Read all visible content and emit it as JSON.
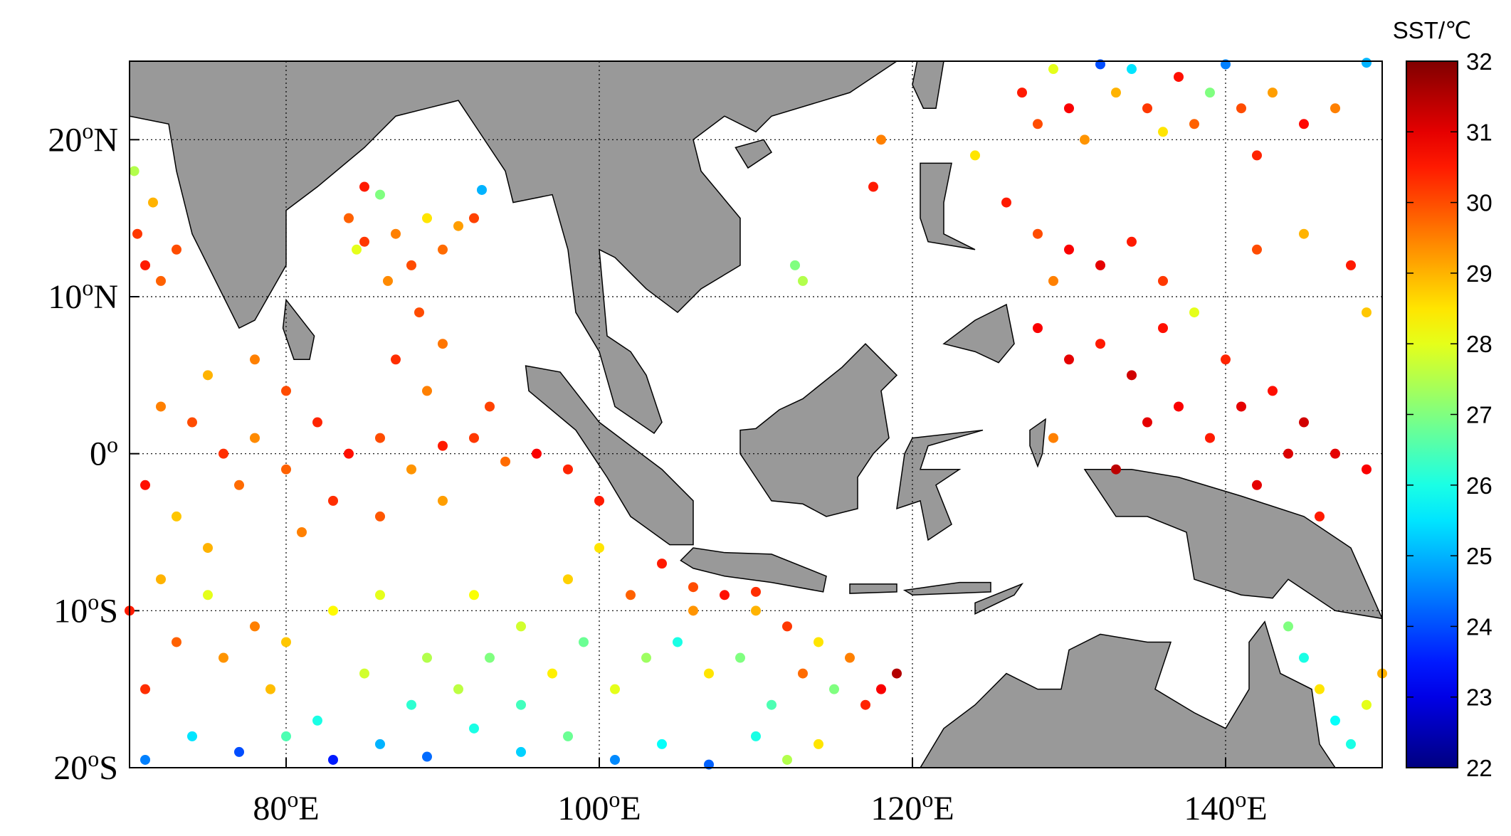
{
  "chart_data": {
    "type": "scatter",
    "xlim": [
      70,
      150
    ],
    "ylim": [
      -20,
      25
    ],
    "xticks": [
      {
        "value": 80,
        "label": "80oE"
      },
      {
        "value": 100,
        "label": "100oE"
      },
      {
        "value": 120,
        "label": "120oE"
      },
      {
        "value": 140,
        "label": "140oE"
      }
    ],
    "yticks": [
      {
        "value": -20,
        "label": "20oS"
      },
      {
        "value": -10,
        "label": "10oS"
      },
      {
        "value": 0,
        "label": "0o"
      },
      {
        "value": 10,
        "label": "10oN"
      },
      {
        "value": 20,
        "label": "20oN"
      }
    ],
    "grid": true,
    "colorbar": {
      "title": "SST/℃",
      "lim": [
        22,
        32
      ],
      "ticks": [
        22,
        23,
        24,
        25,
        26,
        27,
        28,
        29,
        30,
        31,
        32
      ],
      "colormap": "jet"
    },
    "x": [
      84,
      85,
      86,
      87,
      88,
      89,
      90,
      91,
      92,
      92.5,
      86.5,
      88.5,
      90,
      87,
      89,
      85,
      84.5,
      70.5,
      71,
      72,
      73,
      71.5,
      70.3,
      72,
      74,
      76,
      78,
      80,
      82,
      84,
      86,
      88,
      90,
      92,
      94,
      96,
      75,
      78,
      80,
      83,
      77,
      73,
      86,
      90,
      93,
      98,
      100,
      71,
      75,
      81,
      70,
      72,
      75,
      78,
      80,
      83,
      86,
      89,
      92,
      95,
      98,
      100,
      102,
      104,
      106,
      108,
      110,
      112,
      114,
      116,
      118,
      119,
      117,
      115,
      113,
      111,
      109,
      107,
      105,
      103,
      101,
      99,
      97,
      95,
      93,
      91,
      88,
      85,
      82,
      79,
      76,
      73,
      71,
      71,
      74,
      77,
      80,
      83,
      86,
      89,
      92,
      95,
      98,
      101,
      104,
      107,
      110,
      112,
      114,
      127,
      128,
      129,
      130,
      131,
      132,
      133,
      134,
      135,
      136,
      137,
      138,
      139,
      140,
      141,
      142,
      143,
      145,
      147,
      149,
      124,
      126,
      128,
      130,
      132,
      134,
      129,
      136,
      142,
      145,
      148,
      149,
      113,
      112.5,
      118,
      117.5,
      128,
      130,
      132,
      134,
      136,
      138,
      140,
      135,
      137,
      139,
      141,
      143,
      145,
      147,
      149,
      133,
      129,
      142,
      146,
      144,
      144,
      145,
      146,
      147,
      148,
      149,
      150,
      106,
      110
    ],
    "y": [
      15,
      13.5,
      16.5,
      14,
      12,
      15,
      13,
      14.5,
      15,
      16.8,
      11,
      9,
      7,
      6,
      4,
      17,
      13,
      14,
      12,
      11,
      13,
      16,
      18,
      3,
      2,
      0,
      1,
      -1,
      2,
      0,
      1,
      -1,
      0.5,
      1,
      -0.5,
      0,
      5,
      6,
      4,
      -3,
      -2,
      -4,
      -4,
      -3,
      3,
      -1,
      -3,
      -2,
      -6,
      -5,
      -10,
      -8,
      -9,
      -11,
      -12,
      -10,
      -9,
      -13,
      -9,
      -11,
      -8,
      -6,
      -9,
      -7,
      -10,
      -9,
      -10,
      -11,
      -12,
      -13,
      -15,
      -14,
      -16,
      -15,
      -14,
      -16,
      -13,
      -14,
      -12,
      -13,
      -15,
      -12,
      -14,
      -16,
      -13,
      -15,
      -16,
      -14,
      -17,
      -15,
      -13,
      -12,
      -15,
      -19.5,
      -18,
      -19,
      -18,
      -19.5,
      -18.5,
      -19.3,
      -17.5,
      -19,
      -18,
      -19.5,
      -18.5,
      -19.8,
      -18,
      -19.5,
      -18.5,
      23,
      21,
      24.5,
      22,
      20,
      24.8,
      23,
      24.5,
      22,
      20.5,
      24,
      21,
      23,
      24.8,
      22,
      19,
      23,
      21,
      22,
      24.9,
      19,
      16,
      14,
      13,
      12,
      13.5,
      11,
      11,
      13,
      14,
      12,
      9,
      11,
      12,
      20,
      17,
      8,
      6,
      7,
      5,
      8,
      9,
      6,
      2,
      3,
      1,
      3,
      4,
      2,
      0,
      -1,
      -1,
      1,
      -2,
      -4,
      0,
      -11,
      -13,
      -15,
      -17,
      -18.5,
      -16,
      -14,
      -8.5,
      -8.8
    ],
    "c": [
      29.8,
      30.2,
      27,
      29.5,
      30,
      28.5,
      29.7,
      29.2,
      30.1,
      25,
      29.4,
      30,
      29.6,
      30.3,
      29.5,
      30.5,
      28,
      30.2,
      30.5,
      29.8,
      30,
      29,
      27.5,
      29.5,
      30,
      30.3,
      29.4,
      29.8,
      30.4,
      30.6,
      30,
      29.3,
      30.5,
      30.2,
      29.7,
      30.8,
      29,
      29.5,
      30,
      30.3,
      29.7,
      28.8,
      29.9,
      29.2,
      30.1,
      30.4,
      30.5,
      30.6,
      29,
      29.5,
      30.5,
      29,
      28,
      29.5,
      28.8,
      28.3,
      28,
      27.5,
      28.2,
      27.8,
      28.7,
      28.5,
      29.8,
      30.5,
      29.3,
      30.6,
      29,
      30.2,
      28.5,
      29.5,
      30.8,
      31.5,
      30.4,
      27,
      29.7,
      26.5,
      27,
      28.5,
      26,
      27.3,
      28,
      26.8,
      28.4,
      26.4,
      27,
      27.6,
      26.2,
      27.8,
      26,
      28.9,
      29.3,
      29.8,
      30.3,
      24.5,
      25.5,
      24,
      26.5,
      23.5,
      25,
      24.3,
      26,
      25.3,
      26.8,
      24.6,
      25.8,
      24.2,
      26,
      27.5,
      28.5,
      30.5,
      30,
      28,
      30.8,
      29.3,
      24,
      29,
      25.5,
      30.2,
      28.5,
      30.6,
      29.8,
      27,
      24.5,
      30,
      30.4,
      29.2,
      30.7,
      29.5,
      25,
      28.5,
      30.5,
      30,
      30.8,
      31,
      30.5,
      29.5,
      30.2,
      30,
      29,
      30.5,
      28.8,
      27.5,
      27,
      29.5,
      30.5,
      30.8,
      31,
      30.5,
      31.2,
      30.6,
      28,
      30.4,
      31,
      30.8,
      30.5,
      31,
      30.6,
      31.2,
      31,
      30.8,
      31.4,
      29.5,
      31,
      30.5,
      31.1,
      27,
      26,
      28.5,
      25.8,
      26,
      28,
      29,
      30,
      30.3
    ]
  }
}
